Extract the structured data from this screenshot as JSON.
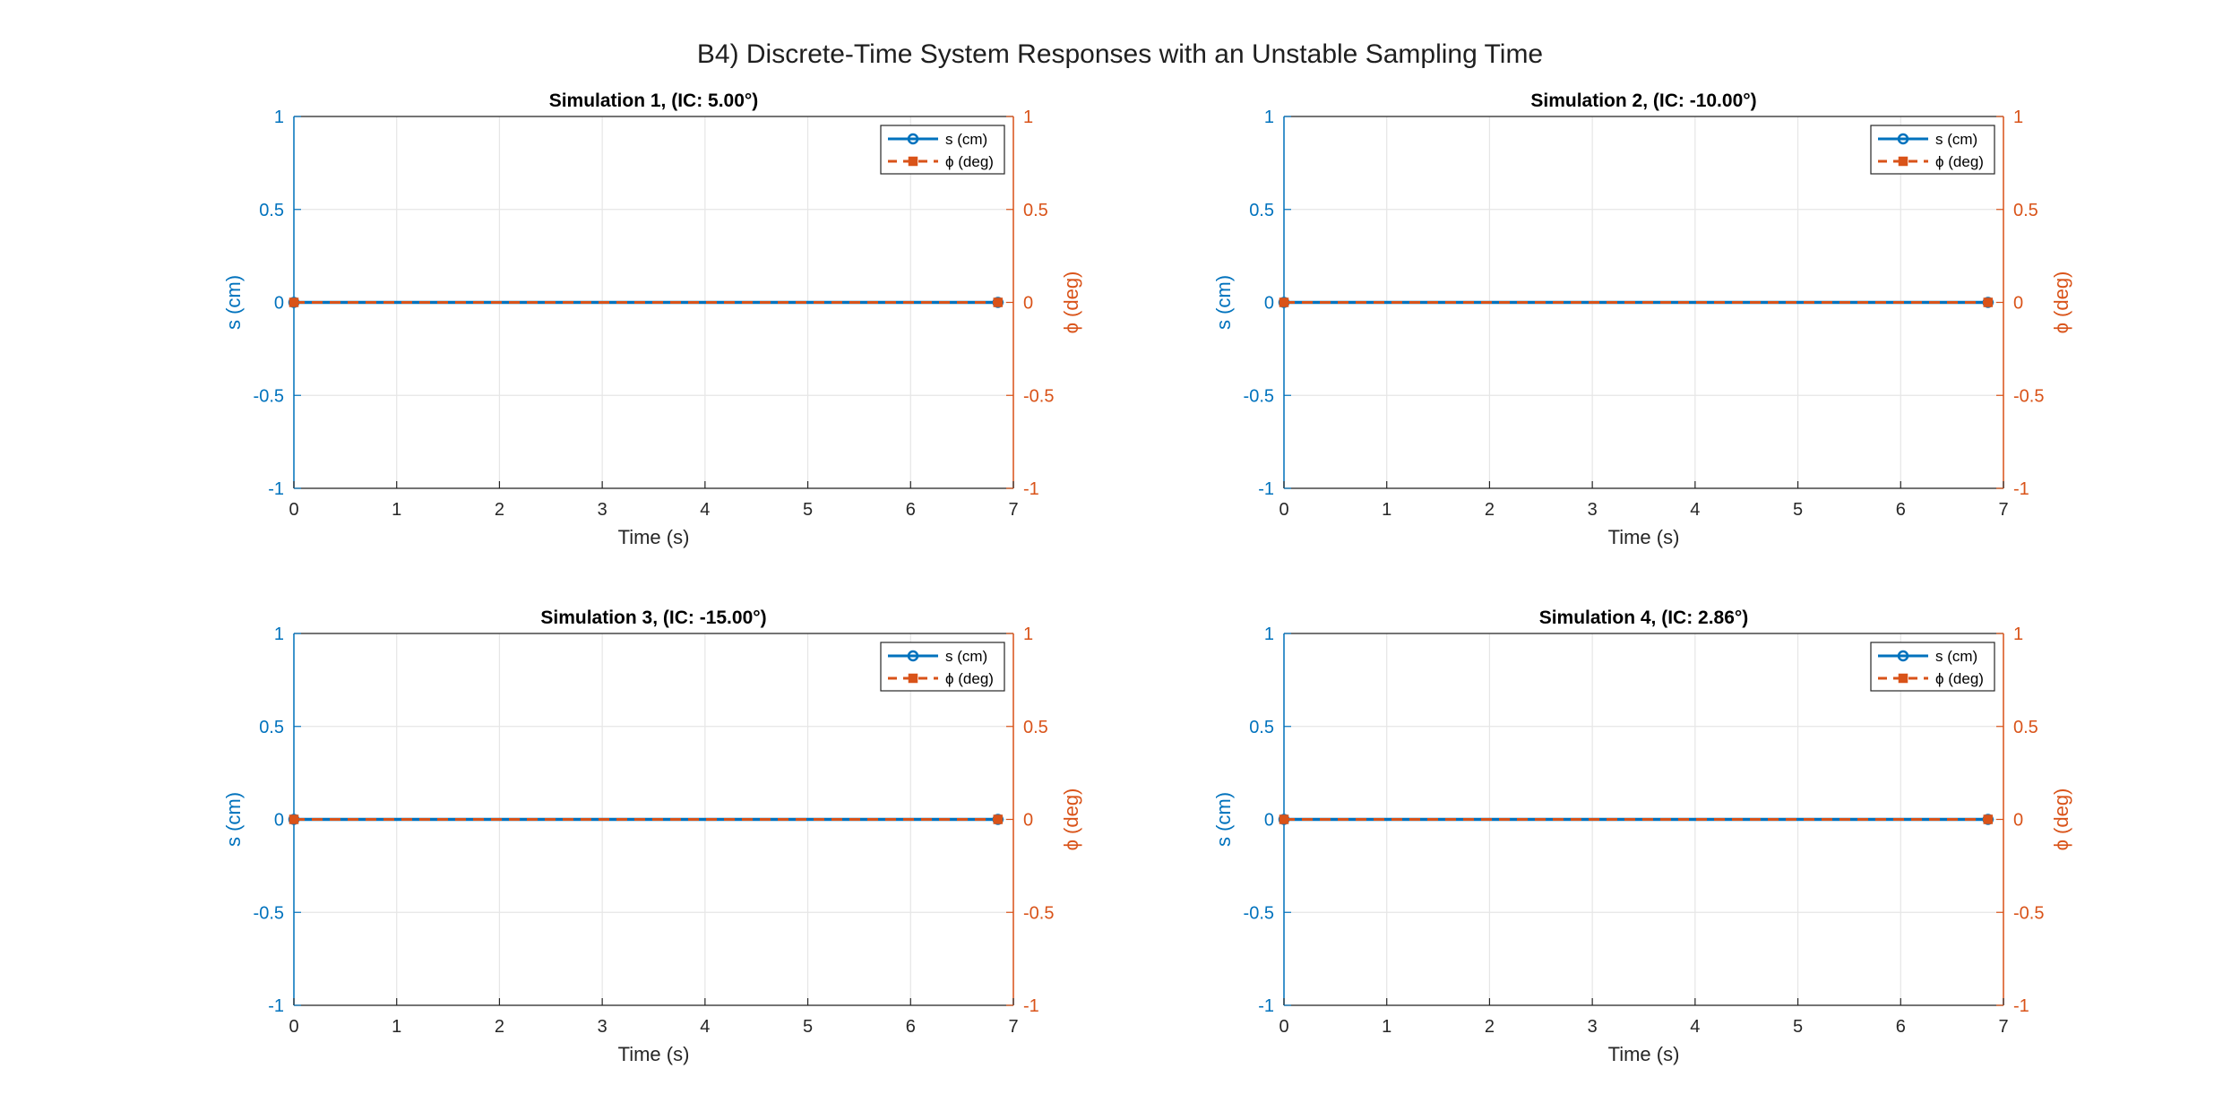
{
  "figure": {
    "title": "B4) Discrete-Time System Responses with an Unstable Sampling Time"
  },
  "colors": {
    "left_axis": "#0072BD",
    "right_axis": "#D95319",
    "grid": "#e6e6e6",
    "frame": "#262626",
    "text": "#262626"
  },
  "chart_data": [
    {
      "type": "line",
      "title": "Simulation 1, (IC: 5.00°)",
      "xlabel": "Time (s)",
      "ylabel_left": "s (cm)",
      "ylabel_right": "ϕ (deg)",
      "xlim": [
        0,
        7
      ],
      "ylim_left": [
        -1,
        1
      ],
      "ylim_right": [
        -1,
        1
      ],
      "xticks": [
        "0",
        "1",
        "2",
        "3",
        "4",
        "5",
        "6",
        "7"
      ],
      "yticks_left": [
        "-1",
        "-0.5",
        "0",
        "0.5",
        "1"
      ],
      "yticks_right": [
        "-1",
        "-0.5",
        "0",
        "0.5",
        "1"
      ],
      "grid": true,
      "legend_position": "top-right",
      "series": [
        {
          "name": "s (cm)",
          "axis": "left",
          "style": "solid",
          "marker": "circle",
          "x": [
            0,
            6.85
          ],
          "y": [
            0,
            0
          ]
        },
        {
          "name": "ϕ (deg)",
          "axis": "right",
          "style": "dashed",
          "marker": "square",
          "x": [
            0,
            6.85
          ],
          "y": [
            0,
            0
          ]
        }
      ]
    },
    {
      "type": "line",
      "title": "Simulation 2, (IC: -10.00°)",
      "xlabel": "Time (s)",
      "ylabel_left": "s (cm)",
      "ylabel_right": "ϕ (deg)",
      "xlim": [
        0,
        7
      ],
      "ylim_left": [
        -1,
        1
      ],
      "ylim_right": [
        -1,
        1
      ],
      "xticks": [
        "0",
        "1",
        "2",
        "3",
        "4",
        "5",
        "6",
        "7"
      ],
      "yticks_left": [
        "-1",
        "-0.5",
        "0",
        "0.5",
        "1"
      ],
      "yticks_right": [
        "-1",
        "-0.5",
        "0",
        "0.5",
        "1"
      ],
      "grid": true,
      "legend_position": "top-right",
      "series": [
        {
          "name": "s (cm)",
          "axis": "left",
          "style": "solid",
          "marker": "circle",
          "x": [
            0,
            6.85
          ],
          "y": [
            0,
            0
          ]
        },
        {
          "name": "ϕ (deg)",
          "axis": "right",
          "style": "dashed",
          "marker": "square",
          "x": [
            0,
            6.85
          ],
          "y": [
            0,
            0
          ]
        }
      ]
    },
    {
      "type": "line",
      "title": "Simulation 3, (IC: -15.00°)",
      "xlabel": "Time (s)",
      "ylabel_left": "s (cm)",
      "ylabel_right": "ϕ (deg)",
      "xlim": [
        0,
        7
      ],
      "ylim_left": [
        -1,
        1
      ],
      "ylim_right": [
        -1,
        1
      ],
      "xticks": [
        "0",
        "1",
        "2",
        "3",
        "4",
        "5",
        "6",
        "7"
      ],
      "yticks_left": [
        "-1",
        "-0.5",
        "0",
        "0.5",
        "1"
      ],
      "yticks_right": [
        "-1",
        "-0.5",
        "0",
        "0.5",
        "1"
      ],
      "grid": true,
      "legend_position": "top-right",
      "series": [
        {
          "name": "s (cm)",
          "axis": "left",
          "style": "solid",
          "marker": "circle",
          "x": [
            0,
            6.85
          ],
          "y": [
            0,
            0
          ]
        },
        {
          "name": "ϕ (deg)",
          "axis": "right",
          "style": "dashed",
          "marker": "square",
          "x": [
            0,
            6.85
          ],
          "y": [
            0,
            0
          ]
        }
      ]
    },
    {
      "type": "line",
      "title": "Simulation 4, (IC: 2.86°)",
      "xlabel": "Time (s)",
      "ylabel_left": "s (cm)",
      "ylabel_right": "ϕ (deg)",
      "xlim": [
        0,
        7
      ],
      "ylim_left": [
        -1,
        1
      ],
      "ylim_right": [
        -1,
        1
      ],
      "xticks": [
        "0",
        "1",
        "2",
        "3",
        "4",
        "5",
        "6",
        "7"
      ],
      "yticks_left": [
        "-1",
        "-0.5",
        "0",
        "0.5",
        "1"
      ],
      "yticks_right": [
        "-1",
        "-0.5",
        "0",
        "0.5",
        "1"
      ],
      "grid": true,
      "legend_position": "top-right",
      "series": [
        {
          "name": "s (cm)",
          "axis": "left",
          "style": "solid",
          "marker": "circle",
          "x": [
            0,
            6.85
          ],
          "y": [
            0,
            0
          ]
        },
        {
          "name": "ϕ (deg)",
          "axis": "right",
          "style": "dashed",
          "marker": "square",
          "x": [
            0,
            6.85
          ],
          "y": [
            0,
            0
          ]
        }
      ]
    }
  ]
}
